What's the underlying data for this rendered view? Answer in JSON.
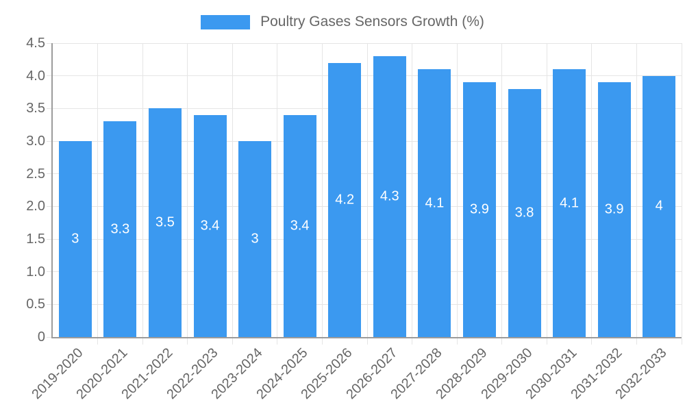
{
  "chart_data": {
    "type": "bar",
    "legend_label": "Poultry Gases Sensors Growth (%)",
    "legend_position": "top",
    "categories": [
      "2019-2020",
      "2020-2021",
      "2021-2022",
      "2022-2023",
      "2023-2024",
      "2024-2025",
      "2025-2026",
      "2026-2027",
      "2027-2028",
      "2028-2029",
      "2029-2030",
      "2030-2031",
      "2031-2032",
      "2032-2033"
    ],
    "values": [
      3,
      3.3,
      3.5,
      3.4,
      3,
      3.4,
      4.2,
      4.3,
      4.1,
      3.9,
      3.8,
      4.1,
      3.9,
      4
    ],
    "value_labels": [
      "3",
      "3.3",
      "3.5",
      "3.4",
      "3",
      "3.4",
      "4.2",
      "4.3",
      "4.1",
      "3.9",
      "3.8",
      "4.1",
      "3.9",
      "4"
    ],
    "ylim": [
      0,
      4.5
    ],
    "yticks": [
      0,
      0.5,
      1,
      1.5,
      2,
      2.5,
      3,
      3.5,
      4,
      4.5
    ],
    "ytick_labels": [
      "0",
      "0.5",
      "1.0",
      "1.5",
      "2.0",
      "2.5",
      "3.0",
      "3.5",
      "4.0",
      "4.5"
    ],
    "grid": true,
    "colors": {
      "bar": "#3B99F0",
      "grid": "#e5e5e5",
      "axis": "#9b9b9b",
      "tick_text": "#666666",
      "value_text": "#ffffff"
    }
  }
}
